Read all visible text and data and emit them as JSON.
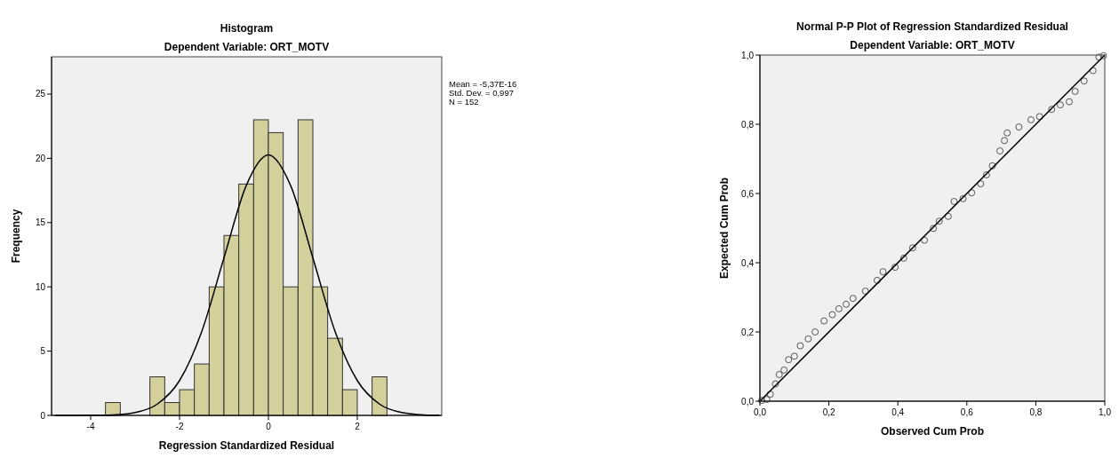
{
  "chart_data": [
    {
      "type": "histogram",
      "title": "Histogram",
      "subtitle": "Dependent Variable: ORT_MOTV",
      "xlabel": "Regression Standardized Residual",
      "ylabel": "Frequency",
      "color": "#d4d09b",
      "bins": [
        -3.667,
        -3.333,
        -3,
        -2.667,
        -2.333,
        -2,
        -1.667,
        -1.333,
        -1,
        -0.667,
        -0.333,
        0,
        0.333,
        0.667,
        1,
        1.333,
        1.667,
        2,
        2.333,
        2.667
      ],
      "values": [
        1,
        0,
        0,
        3,
        1,
        2,
        4,
        10,
        14,
        18,
        23,
        22,
        10,
        23,
        10,
        6,
        2,
        0,
        3
      ],
      "series": [
        {
          "type": "line",
          "color": "#000000",
          "x": [
            -4.8,
            -4,
            -3.5,
            -3,
            -2.5,
            -2,
            -1.5,
            -1,
            -0.5,
            0,
            0.5,
            1,
            1.5,
            2,
            2.5,
            3,
            3.5,
            3.85
          ],
          "values": [
            0,
            0.01,
            0.04,
            0.22,
            0.88,
            2.71,
            6.53,
            12.26,
            17.88,
            20.27,
            17.88,
            12.26,
            6.53,
            2.71,
            0.88,
            0.22,
            0.04,
            0.01
          ]
        }
      ],
      "xlim": [
        -4.88,
        3.9
      ],
      "xticks": [
        -4,
        -2,
        0,
        2
      ],
      "ylim": [
        0,
        27.9
      ],
      "yticks": [
        0,
        5,
        10,
        15,
        20,
        25
      ],
      "grid": false,
      "annotations": [
        "Mean = -5,37E-16",
        "Std. Dev. = 0,997",
        "N = 152"
      ]
    },
    {
      "type": "scatter",
      "title": "Normal P-P Plot of Regression Standardized Residual",
      "subtitle": "Dependent Variable: ORT_MOTV",
      "xlabel": "Observed Cum Prob",
      "ylabel": "Expected Cum Prob",
      "series": [
        {
          "type": "scatter",
          "marker": "circle",
          "color": "#555555",
          "x": [
            0.005,
            0.02,
            0.03,
            0.045,
            0.056,
            0.07,
            0.083,
            0.1,
            0.117,
            0.14,
            0.16,
            0.186,
            0.21,
            0.229,
            0.25,
            0.27,
            0.306,
            0.34,
            0.357,
            0.392,
            0.417,
            0.443,
            0.477,
            0.503,
            0.52,
            0.546,
            0.563,
            0.589,
            0.614,
            0.64,
            0.657,
            0.674,
            0.696,
            0.709,
            0.717,
            0.751,
            0.786,
            0.811,
            0.846,
            0.871,
            0.897,
            0.914,
            0.94,
            0.966,
            0.983,
            0.996
          ],
          "values": [
            0.002,
            0.005,
            0.02,
            0.05,
            0.077,
            0.09,
            0.12,
            0.13,
            0.16,
            0.18,
            0.2,
            0.232,
            0.25,
            0.267,
            0.28,
            0.297,
            0.318,
            0.349,
            0.374,
            0.387,
            0.413,
            0.443,
            0.465,
            0.499,
            0.52,
            0.534,
            0.577,
            0.585,
            0.602,
            0.628,
            0.654,
            0.68,
            0.723,
            0.753,
            0.775,
            0.792,
            0.813,
            0.822,
            0.843,
            0.856,
            0.865,
            0.895,
            0.925,
            0.955,
            0.994,
            0.998
          ]
        },
        {
          "type": "line",
          "color": "#000000",
          "x": [
            0,
            1
          ],
          "values": [
            0,
            1
          ]
        }
      ],
      "xlim": [
        0,
        1
      ],
      "ylim": [
        0,
        1
      ],
      "xticks": [
        {
          "value": 0,
          "label": "0,0"
        },
        {
          "value": 0.2,
          "label": "0,2"
        },
        {
          "value": 0.4,
          "label": "0,4"
        },
        {
          "value": 0.6,
          "label": "0,6"
        },
        {
          "value": 0.8,
          "label": "0,8"
        },
        {
          "value": 1,
          "label": "1,0"
        }
      ],
      "yticks": [
        {
          "value": 0,
          "label": "0,0"
        },
        {
          "value": 0.2,
          "label": "0,2"
        },
        {
          "value": 0.4,
          "label": "0,4"
        },
        {
          "value": 0.6,
          "label": "0,6"
        },
        {
          "value": 0.8,
          "label": "0,8"
        },
        {
          "value": 1,
          "label": "1,0"
        }
      ],
      "grid": false
    }
  ]
}
